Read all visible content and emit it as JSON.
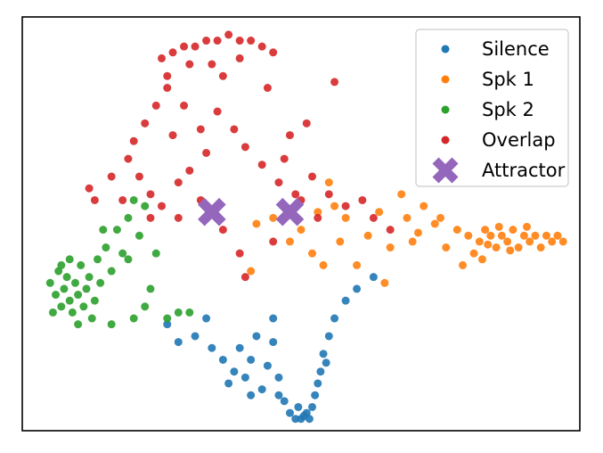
{
  "chart_data": {
    "type": "scatter",
    "title": "",
    "xlabel": "",
    "ylabel": "",
    "axes_ticks": "none",
    "xlim": [
      0,
      10
    ],
    "ylim": [
      0,
      7
    ],
    "grid": false,
    "legend": {
      "position": "top-right"
    },
    "series": [
      {
        "name": "Silence",
        "color": "#1f77b4",
        "marker": "circle",
        "points": [
          [
            2.6,
            1.8
          ],
          [
            2.8,
            1.5
          ],
          [
            3.1,
            1.6
          ],
          [
            3.4,
            1.4
          ],
          [
            3.6,
            1.2
          ],
          [
            3.8,
            1.0
          ],
          [
            3.9,
            1.4
          ],
          [
            4.0,
            0.9
          ],
          [
            4.1,
            1.2
          ],
          [
            4.2,
            1.6
          ],
          [
            4.3,
            0.7
          ],
          [
            4.4,
            1.1
          ],
          [
            4.5,
            1.5
          ],
          [
            4.6,
            0.9
          ],
          [
            4.7,
            0.5
          ],
          [
            4.8,
            0.3
          ],
          [
            4.9,
            0.2
          ],
          [
            5.0,
            0.2
          ],
          [
            5.05,
            0.25
          ],
          [
            5.1,
            0.3
          ],
          [
            5.15,
            0.2
          ],
          [
            5.2,
            0.4
          ],
          [
            5.25,
            0.6
          ],
          [
            5.3,
            0.8
          ],
          [
            5.35,
            1.0
          ],
          [
            5.4,
            1.3
          ],
          [
            5.5,
            1.6
          ],
          [
            5.6,
            1.9
          ],
          [
            5.8,
            2.2
          ],
          [
            6.0,
            2.4
          ],
          [
            6.3,
            2.6
          ],
          [
            4.1,
            0.6
          ],
          [
            3.7,
            0.8
          ],
          [
            4.5,
            1.9
          ],
          [
            3.3,
            1.9
          ],
          [
            4.6,
            0.6
          ],
          [
            5.45,
            1.15
          ],
          [
            4.95,
            0.4
          ]
        ]
      },
      {
        "name": "Spk 1",
        "color": "#ff7f0e",
        "marker": "circle",
        "points": [
          [
            4.2,
            3.5
          ],
          [
            4.5,
            3.6
          ],
          [
            4.8,
            3.2
          ],
          [
            5.0,
            3.4
          ],
          [
            5.2,
            3.0
          ],
          [
            5.4,
            2.8
          ],
          [
            5.5,
            4.2
          ],
          [
            5.6,
            3.8
          ],
          [
            5.8,
            3.6
          ],
          [
            6.0,
            2.8
          ],
          [
            6.2,
            3.3
          ],
          [
            6.4,
            3.7
          ],
          [
            6.6,
            3.1
          ],
          [
            6.8,
            4.0
          ],
          [
            6.9,
            3.6
          ],
          [
            7.0,
            3.2
          ],
          [
            7.2,
            3.8
          ],
          [
            7.4,
            3.5
          ],
          [
            7.6,
            3.1
          ],
          [
            7.8,
            3.4
          ],
          [
            8.0,
            3.3
          ],
          [
            8.2,
            3.2
          ],
          [
            8.3,
            3.4
          ],
          [
            8.4,
            3.3
          ],
          [
            8.5,
            3.1
          ],
          [
            8.6,
            3.3
          ],
          [
            8.7,
            3.2
          ],
          [
            8.8,
            3.4
          ],
          [
            8.9,
            3.1
          ],
          [
            9.0,
            3.3
          ],
          [
            9.1,
            3.2
          ],
          [
            9.2,
            3.3
          ],
          [
            9.3,
            3.1
          ],
          [
            9.4,
            3.3
          ],
          [
            9.5,
            3.2
          ],
          [
            9.6,
            3.3
          ],
          [
            9.7,
            3.2
          ],
          [
            8.1,
            3.0
          ],
          [
            8.25,
            2.9
          ],
          [
            7.9,
            2.8
          ],
          [
            6.5,
            2.5
          ],
          [
            4.1,
            2.7
          ],
          [
            5.7,
            3.2
          ],
          [
            8.55,
            3.45
          ],
          [
            8.75,
            3.05
          ],
          [
            9.05,
            3.45
          ],
          [
            8.35,
            3.15
          ],
          [
            7.5,
            3.6
          ],
          [
            7.1,
            3.35
          ],
          [
            5.3,
            3.7
          ]
        ]
      },
      {
        "name": "Spk 2",
        "color": "#2ca02c",
        "marker": "circle",
        "points": [
          [
            0.5,
            2.5
          ],
          [
            0.6,
            2.3
          ],
          [
            0.65,
            2.7
          ],
          [
            0.7,
            2.1
          ],
          [
            0.75,
            2.4
          ],
          [
            0.8,
            2.6
          ],
          [
            0.85,
            2.2
          ],
          [
            0.9,
            2.0
          ],
          [
            0.95,
            2.5
          ],
          [
            1.0,
            2.3
          ],
          [
            1.05,
            2.8
          ],
          [
            1.1,
            2.1
          ],
          [
            1.15,
            2.4
          ],
          [
            1.2,
            2.6
          ],
          [
            1.25,
            1.9
          ],
          [
            1.3,
            2.2
          ],
          [
            1.35,
            2.9
          ],
          [
            1.4,
            2.5
          ],
          [
            1.5,
            3.1
          ],
          [
            1.6,
            2.7
          ],
          [
            1.7,
            3.4
          ],
          [
            1.8,
            3.0
          ],
          [
            1.9,
            3.6
          ],
          [
            2.0,
            3.9
          ],
          [
            2.1,
            3.3
          ],
          [
            2.2,
            3.8
          ],
          [
            2.3,
            2.4
          ],
          [
            2.4,
            3.0
          ],
          [
            2.6,
            1.9
          ],
          [
            2.8,
            2.0
          ],
          [
            3.0,
            2.0
          ],
          [
            2.2,
            2.1
          ],
          [
            1.6,
            1.8
          ],
          [
            0.55,
            2.0
          ],
          [
            0.7,
            2.8
          ],
          [
            1.0,
            1.8
          ],
          [
            1.9,
            2.9
          ],
          [
            2.0,
            1.9
          ],
          [
            1.45,
            3.4
          ],
          [
            0.85,
            2.9
          ]
        ]
      },
      {
        "name": "Overlap",
        "color": "#d62728",
        "marker": "circle",
        "points": [
          [
            2.5,
            6.3
          ],
          [
            2.7,
            6.4
          ],
          [
            2.9,
            6.5
          ],
          [
            3.1,
            6.5
          ],
          [
            3.3,
            6.6
          ],
          [
            3.5,
            6.6
          ],
          [
            3.7,
            6.7
          ],
          [
            3.9,
            6.6
          ],
          [
            4.1,
            6.6
          ],
          [
            4.3,
            6.5
          ],
          [
            4.5,
            6.4
          ],
          [
            2.6,
            5.8
          ],
          [
            2.4,
            5.5
          ],
          [
            2.2,
            5.2
          ],
          [
            2.0,
            4.9
          ],
          [
            1.9,
            4.6
          ],
          [
            2.1,
            4.3
          ],
          [
            2.3,
            4.0
          ],
          [
            2.5,
            3.8
          ],
          [
            2.8,
            4.2
          ],
          [
            3.0,
            4.4
          ],
          [
            3.2,
            5.1
          ],
          [
            3.5,
            5.4
          ],
          [
            3.8,
            5.1
          ],
          [
            4.0,
            4.8
          ],
          [
            4.3,
            4.5
          ],
          [
            4.6,
            4.2
          ],
          [
            4.9,
            4.0
          ],
          [
            5.2,
            4.3
          ],
          [
            5.5,
            4.0
          ],
          [
            5.8,
            3.8
          ],
          [
            6.1,
            3.9
          ],
          [
            6.3,
            3.6
          ],
          [
            6.6,
            3.4
          ],
          [
            3.6,
            3.4
          ],
          [
            3.9,
            3.0
          ],
          [
            4.0,
            2.6
          ],
          [
            4.5,
            3.2
          ],
          [
            2.8,
            3.6
          ],
          [
            3.2,
            3.9
          ],
          [
            1.2,
            4.1
          ],
          [
            1.6,
            4.3
          ],
          [
            3.4,
            6.2
          ],
          [
            3.6,
            6.0
          ],
          [
            4.8,
            5.0
          ],
          [
            5.1,
            5.2
          ],
          [
            5.6,
            5.9
          ],
          [
            4.4,
            5.8
          ],
          [
            2.9,
            5.5
          ],
          [
            2.7,
            5.0
          ],
          [
            4.7,
            4.6
          ],
          [
            5.3,
            3.6
          ],
          [
            3.3,
            4.7
          ],
          [
            2.3,
            3.6
          ],
          [
            1.8,
            3.9
          ],
          [
            5.0,
            3.9
          ],
          [
            2.6,
            6.0
          ],
          [
            3.0,
            6.2
          ],
          [
            3.9,
            6.3
          ],
          [
            1.3,
            3.9
          ]
        ]
      },
      {
        "name": "Attractor",
        "color": "#9467bd",
        "marker": "x",
        "points": [
          [
            3.4,
            3.7
          ],
          [
            4.8,
            3.7
          ]
        ]
      }
    ]
  }
}
